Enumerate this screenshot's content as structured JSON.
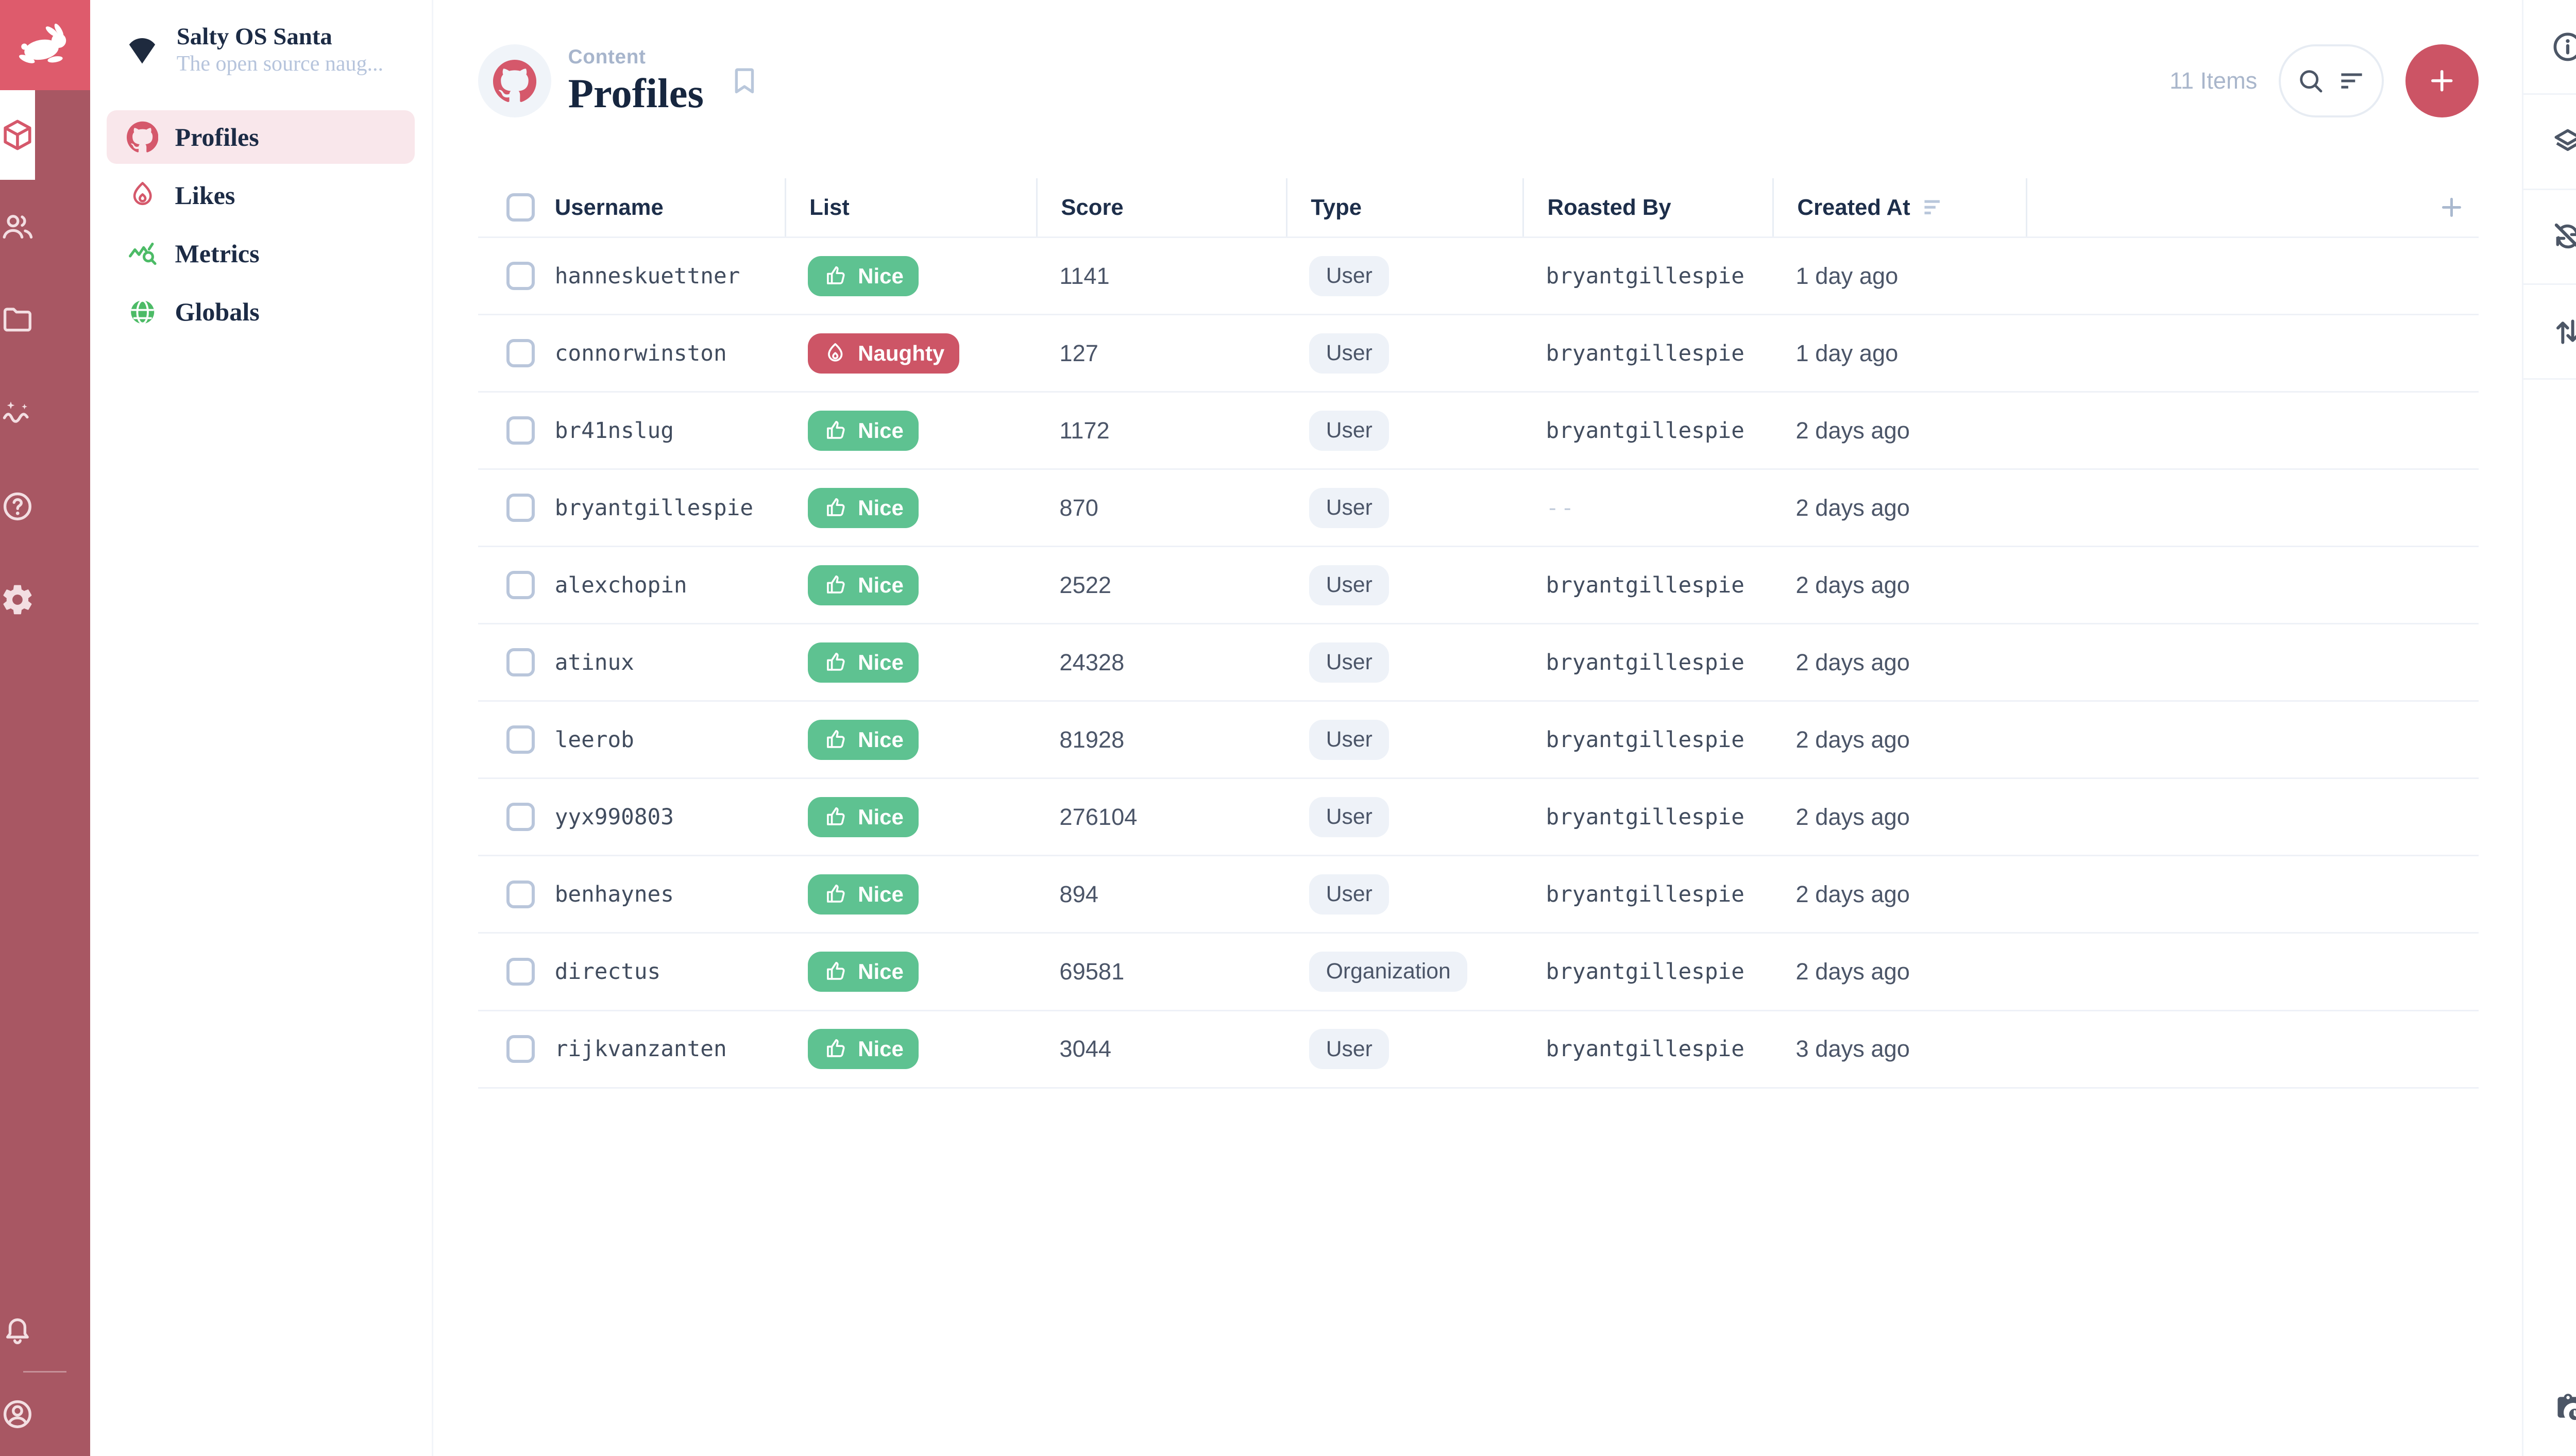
{
  "colors": {
    "brand": "#D5586B",
    "logo_bg": "#DE5B6C",
    "module_bar_bg": "#A85763",
    "module_icon": "#F3DEE2",
    "nav_active_bg": "#F9E7EB",
    "navy": "#1C2B45",
    "slate": "#4B5568",
    "mono_text": "#414C5E",
    "muted": "#A9B6CB",
    "icon_muted": "#B9C7DB",
    "chip_bg": "#EEF2F8",
    "divider": "#EEF1F7",
    "nice_green": "#5EC291",
    "naughty_red": "#CD5566",
    "add_button_bg": "#CC5465"
  },
  "module_bar": {
    "items": [
      {
        "name": "content",
        "icon": "box",
        "active": true
      },
      {
        "name": "users",
        "icon": "group",
        "active": false
      },
      {
        "name": "files",
        "icon": "folder",
        "active": false
      },
      {
        "name": "insights",
        "icon": "insights",
        "active": false
      },
      {
        "name": "docs",
        "icon": "help",
        "active": false
      },
      {
        "name": "settings",
        "icon": "gear",
        "active": false
      }
    ],
    "bottom_items": [
      {
        "name": "notifications",
        "icon": "bell"
      },
      {
        "name": "account",
        "icon": "account"
      }
    ]
  },
  "nav": {
    "project_name": "Salty OS Santa",
    "project_description": "The open source naug...",
    "items": [
      {
        "label": "Profiles",
        "icon": "github",
        "color": "#D5586B",
        "active": true
      },
      {
        "label": "Likes",
        "icon": "fire",
        "color": "#D5586B",
        "active": false
      },
      {
        "label": "Metrics",
        "icon": "query-stats",
        "color": "#4CBB66",
        "active": false
      },
      {
        "label": "Globals",
        "icon": "globe",
        "color": "#4CBB66",
        "active": false
      }
    ]
  },
  "header": {
    "breadcrumb": "Content",
    "title": "Profiles",
    "items_count": "11 Items",
    "collection_icon": "github",
    "bookmark_icon": "bookmark",
    "search_icon": "search",
    "filter_icon": "filter-sort",
    "add_icon": "plus"
  },
  "table": {
    "columns": [
      "Username",
      "List",
      "Score",
      "Type",
      "Roasted By",
      "Created At"
    ],
    "sorted_column": "Created At",
    "rows": [
      {
        "username": "hanneskuettner",
        "list": "Nice",
        "score": "1141",
        "type": "User",
        "roasted_by": "bryantgillespie",
        "created_at": "1 day ago"
      },
      {
        "username": "connorwinston",
        "list": "Naughty",
        "score": "127",
        "type": "User",
        "roasted_by": "bryantgillespie",
        "created_at": "1 day ago"
      },
      {
        "username": "br41nslug",
        "list": "Nice",
        "score": "1172",
        "type": "User",
        "roasted_by": "bryantgillespie",
        "created_at": "2 days ago"
      },
      {
        "username": "bryantgillespie",
        "list": "Nice",
        "score": "870",
        "type": "User",
        "roasted_by": "--",
        "created_at": "2 days ago"
      },
      {
        "username": "alexchopin",
        "list": "Nice",
        "score": "2522",
        "type": "User",
        "roasted_by": "bryantgillespie",
        "created_at": "2 days ago"
      },
      {
        "username": "atinux",
        "list": "Nice",
        "score": "24328",
        "type": "User",
        "roasted_by": "bryantgillespie",
        "created_at": "2 days ago"
      },
      {
        "username": "leerob",
        "list": "Nice",
        "score": "81928",
        "type": "User",
        "roasted_by": "bryantgillespie",
        "created_at": "2 days ago"
      },
      {
        "username": "yyx990803",
        "list": "Nice",
        "score": "276104",
        "type": "User",
        "roasted_by": "bryantgillespie",
        "created_at": "2 days ago"
      },
      {
        "username": "benhaynes",
        "list": "Nice",
        "score": "894",
        "type": "User",
        "roasted_by": "bryantgillespie",
        "created_at": "2 days ago"
      },
      {
        "username": "directus",
        "list": "Nice",
        "score": "69581",
        "type": "Organization",
        "roasted_by": "bryantgillespie",
        "created_at": "2 days ago"
      },
      {
        "username": "rijkvanzanten",
        "list": "Nice",
        "score": "3044",
        "type": "User",
        "roasted_by": "bryantgillespie",
        "created_at": "3 days ago"
      }
    ]
  },
  "badges": {
    "nice": {
      "label": "Nice",
      "icon": "thumb-up",
      "color": "#5EC291"
    },
    "naughty": {
      "label": "Naughty",
      "icon": "fire",
      "color": "#CD5566"
    }
  },
  "right_sidebar": {
    "items": [
      {
        "name": "info",
        "icon": "info"
      },
      {
        "name": "layers",
        "icon": "layers"
      },
      {
        "name": "sync-disabled",
        "icon": "sync-disabled"
      },
      {
        "name": "sort-order",
        "icon": "swap-vert"
      }
    ],
    "bottom_items": [
      {
        "name": "activity",
        "icon": "clipboard-clock"
      }
    ]
  }
}
